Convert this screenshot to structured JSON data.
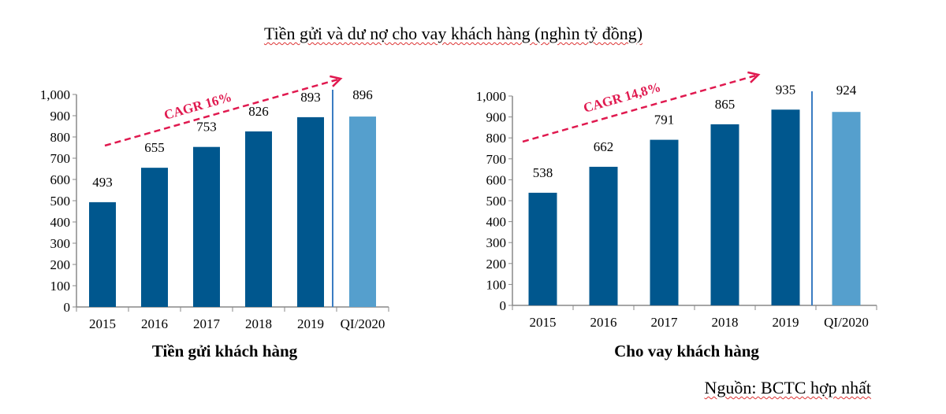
{
  "title": "Tiền gửi và dư nợ cho vay khách hàng (nghìn tỷ đồng)",
  "source": "Nguồn: BCTC hợp nhất",
  "colors": {
    "bar": "#00578E",
    "bar_latest": "#559FCD",
    "annotation": "#E0194F",
    "separator": "#3A7CC2"
  },
  "chart_data": [
    {
      "type": "bar",
      "xlabel": "Tiền gửi khách hàng",
      "categories": [
        "2015",
        "2016",
        "2017",
        "2018",
        "2019",
        "QI/2020"
      ],
      "values": [
        493,
        655,
        753,
        826,
        893,
        896
      ],
      "data_labels": [
        "493",
        "655",
        "753",
        "826",
        "893",
        "896"
      ],
      "ylim": [
        0,
        1000
      ],
      "yticks": [
        "0",
        "100",
        "200",
        "300",
        "400",
        "500",
        "600",
        "700",
        "800",
        "900",
        "1,000"
      ],
      "annotation": "CAGR 16%",
      "grid": false
    },
    {
      "type": "bar",
      "xlabel": "Cho vay khách hàng",
      "categories": [
        "2015",
        "2016",
        "2017",
        "2018",
        "2019",
        "QI/2020"
      ],
      "values": [
        538,
        662,
        791,
        865,
        935,
        924
      ],
      "data_labels": [
        "538",
        "662",
        "791",
        "865",
        "935",
        "924"
      ],
      "ylim": [
        0,
        1000
      ],
      "yticks": [
        "0",
        "100",
        "200",
        "300",
        "400",
        "500",
        "600",
        "700",
        "800",
        "900",
        "1,000"
      ],
      "annotation": "CAGR 14,8%",
      "grid": false
    }
  ]
}
